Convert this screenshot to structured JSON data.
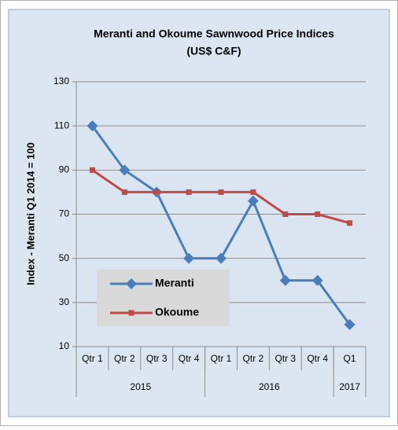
{
  "chart_data": {
    "type": "line",
    "title": "Meranti and Okoume Sawnwood Price Indices",
    "subtitle": "(US$ C&F)",
    "y_label": "Index - Meranti  Q1 2014 = 100",
    "categories": [
      "Qtr 1",
      "Qtr 2",
      "Qtr 3",
      "Qtr 4",
      "Qtr 1",
      "Qtr 2",
      "Qtr 3",
      "Qtr 4",
      "Q1"
    ],
    "groups": [
      {
        "label": "2015",
        "span": 4
      },
      {
        "label": "2016",
        "span": 4
      },
      {
        "label": "2017",
        "span": 1
      }
    ],
    "series": [
      {
        "name": "Meranti",
        "color": "#4a7ebb",
        "marker": "diamond",
        "values": [
          110,
          90,
          80,
          50,
          50,
          76,
          40,
          40,
          20
        ]
      },
      {
        "name": "Okoume",
        "color": "#be4b48",
        "marker": "square",
        "values": [
          90,
          80,
          80,
          80,
          80,
          80,
          70,
          70,
          66
        ]
      }
    ],
    "ylim": [
      10,
      130
    ],
    "yticks": [
      10,
      30,
      50,
      70,
      90,
      110,
      130
    ],
    "grid": true
  }
}
